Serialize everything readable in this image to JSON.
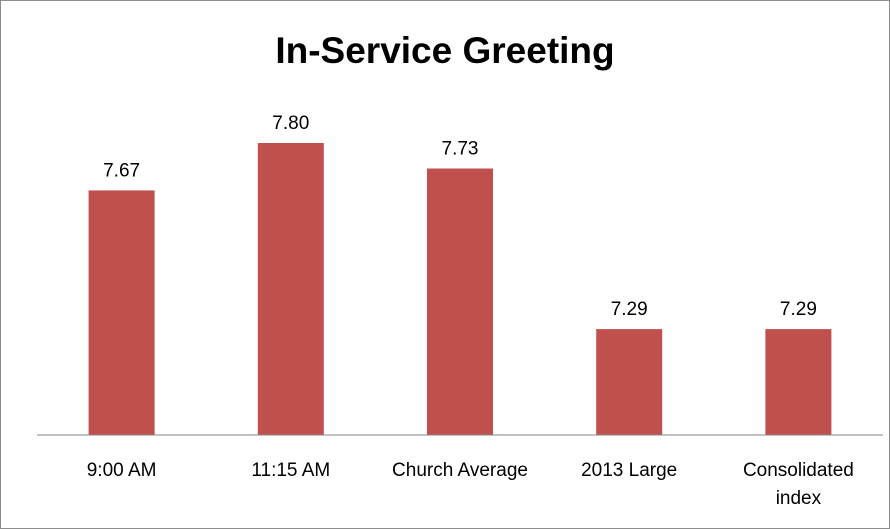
{
  "chart_data": {
    "type": "bar",
    "title": "In-Service Greeting",
    "categories": [
      [
        "9:00 AM"
      ],
      [
        "11:15 AM"
      ],
      [
        "Church Average"
      ],
      [
        "2013 Large"
      ],
      [
        "Consolidated",
        "index"
      ]
    ],
    "values": [
      7.67,
      7.8,
      7.73,
      7.29,
      7.29
    ],
    "data_labels": [
      "7.67",
      "7.80",
      "7.73",
      "7.29",
      "7.29"
    ],
    "bar_color": "#C0504D",
    "legend": "none",
    "grid": false
  }
}
